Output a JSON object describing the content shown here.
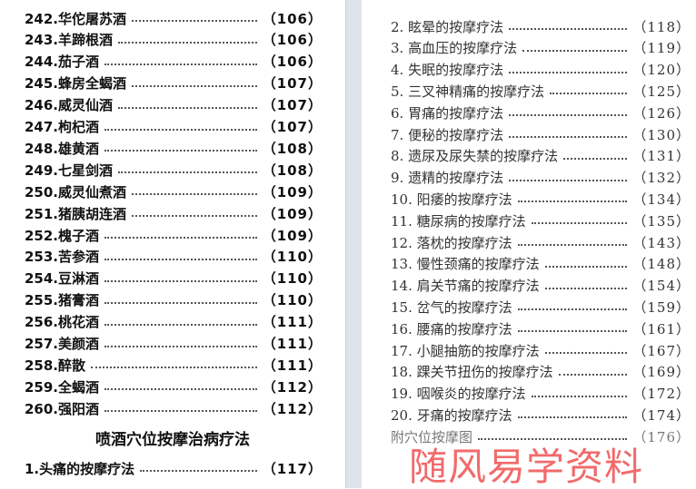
{
  "left_page": {
    "entries": [
      {
        "label": "242.华佗屠苏酒",
        "page": "（106）"
      },
      {
        "label": "243.羊蹄根酒",
        "page": "（106）"
      },
      {
        "label": "244.茄子酒",
        "page": "（106）"
      },
      {
        "label": "245.蜂房全蝎酒",
        "page": "（107）"
      },
      {
        "label": "246.威灵仙酒",
        "page": "（107）"
      },
      {
        "label": "247.枸杞酒",
        "page": "（107）"
      },
      {
        "label": "248.雄黄酒",
        "page": "（108）"
      },
      {
        "label": "249.七星剑酒",
        "page": "（108）"
      },
      {
        "label": "250.威灵仙煮酒",
        "page": "（109）"
      },
      {
        "label": "251.猪胰胡连酒",
        "page": "（109）"
      },
      {
        "label": "252.槐子酒",
        "page": "（109）"
      },
      {
        "label": "253.苦参酒",
        "page": "（110）"
      },
      {
        "label": "254.豆淋酒",
        "page": "（110）"
      },
      {
        "label": "255.猪膏酒",
        "page": "（110）"
      },
      {
        "label": "256.桃花酒",
        "page": "（111）"
      },
      {
        "label": "257.美颜酒",
        "page": "（111）"
      },
      {
        "label": "258.醉散",
        "page": "（111）"
      },
      {
        "label": "259.全蝎酒",
        "page": "（112）"
      },
      {
        "label": "260.强阳酒",
        "page": "（112）"
      }
    ],
    "section_heading": "喷酒穴位按摩治病疗法",
    "section_first": {
      "label": "1.头痛的按摩疗法",
      "page": "（117）"
    }
  },
  "right_page": {
    "entries": [
      {
        "label": "2. 眩晕的按摩疗法",
        "page": "（118）"
      },
      {
        "label": "3. 高血压的按摩疗法",
        "page": "（119）"
      },
      {
        "label": "4. 失眠的按摩疗法",
        "page": "（120）"
      },
      {
        "label": "5. 三叉神精痛的按摩疗法",
        "page": "（125）"
      },
      {
        "label": "6. 胃痛的按摩疗法",
        "page": "（126）"
      },
      {
        "label": "7. 便秘的按摩疗法",
        "page": "（130）"
      },
      {
        "label": "8. 遗尿及尿失禁的按摩疗法",
        "page": "（131）"
      },
      {
        "label": "9. 遗精的按摩疗法",
        "page": "（132）"
      },
      {
        "label": "10. 阳痿的按摩疗法",
        "page": "（134）"
      },
      {
        "label": "11. 糖尿病的按摩疗法",
        "page": "（135）"
      },
      {
        "label": "12. 落枕的按摩疗法",
        "page": "（143）"
      },
      {
        "label": "13. 慢性颈痛的按摩疗法",
        "page": "（148）"
      },
      {
        "label": "14. 肩关节痛的按摩疗法",
        "page": "（154）"
      },
      {
        "label": "15. 岔气的按摩疗法",
        "page": "（159）"
      },
      {
        "label": "16. 腰痛的按摩疗法",
        "page": "（161）"
      },
      {
        "label": "17. 小腿抽筋的按摩疗法",
        "page": "（167）"
      },
      {
        "label": "18. 踝关节扭伤的按摩疗法",
        "page": "（169）"
      },
      {
        "label": "19. 咽喉炎的按摩疗法",
        "page": "（172）"
      },
      {
        "label": "20. 牙痛的按摩疗法",
        "page": "（174）"
      },
      {
        "label": "附穴位按摩图",
        "page": "（176）"
      }
    ]
  },
  "watermark": "随风易学资料",
  "colors": {
    "watermark": "#f05050",
    "gutter": "#dfe4ea"
  }
}
